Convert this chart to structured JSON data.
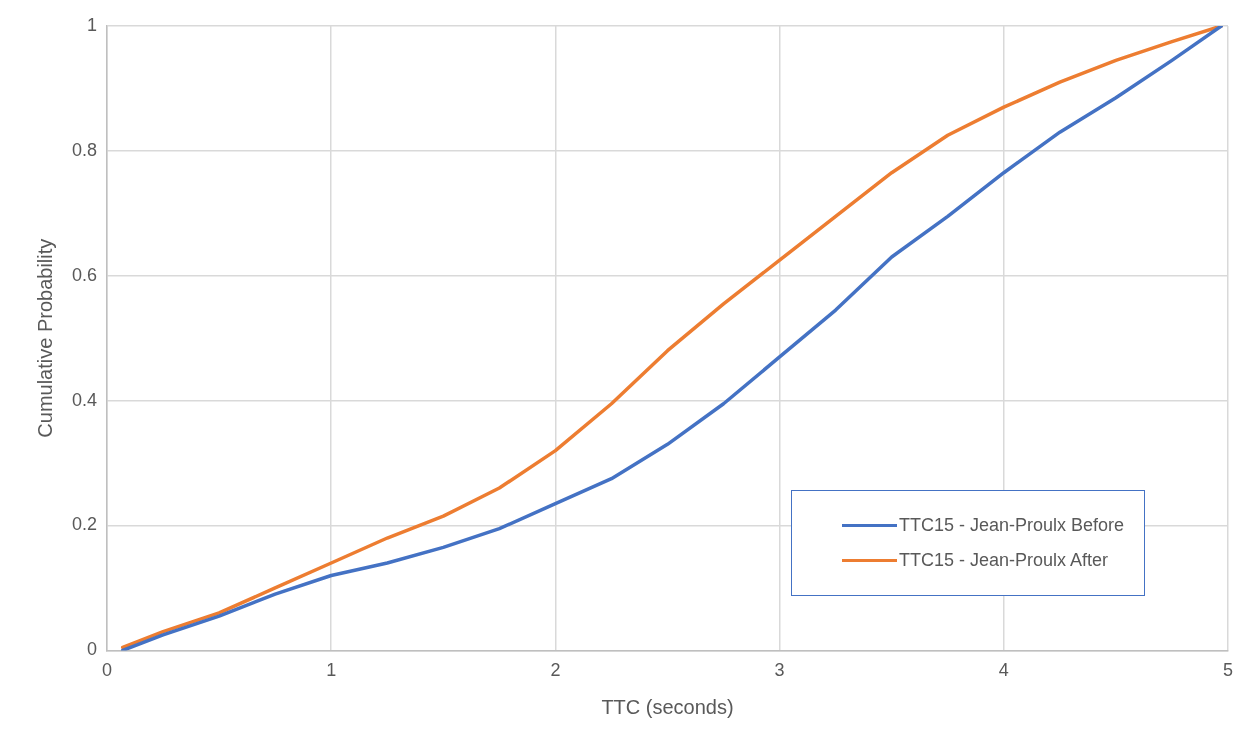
{
  "chart_data": {
    "type": "line",
    "xlabel": "TTC (seconds)",
    "ylabel": "Cumulative Probability",
    "x": [
      0.07,
      0.25,
      0.5,
      0.75,
      1,
      1.25,
      1.5,
      1.75,
      2,
      2.25,
      2.5,
      2.75,
      3,
      3.25,
      3.5,
      3.75,
      4,
      4.25,
      4.5,
      4.75,
      4.97
    ],
    "series": [
      {
        "name": "TTC15 - Jean-Proulx Before",
        "color": "#4472c4",
        "values": [
          0,
          0.025,
          0.055,
          0.09,
          0.12,
          0.14,
          0.165,
          0.195,
          0.235,
          0.275,
          0.33,
          0.395,
          0.47,
          0.545,
          0.63,
          0.695,
          0.765,
          0.83,
          0.885,
          0.945,
          1
        ]
      },
      {
        "name": "TTC15 - Jean-Proulx After",
        "color": "#ed7d31",
        "values": [
          0.005,
          0.03,
          0.06,
          0.1,
          0.14,
          0.18,
          0.215,
          0.26,
          0.32,
          0.395,
          0.48,
          0.555,
          0.625,
          0.695,
          0.765,
          0.825,
          0.87,
          0.91,
          0.945,
          0.975,
          1
        ]
      }
    ],
    "xlim": [
      0,
      5
    ],
    "xticks": [
      0,
      1,
      2,
      3,
      4,
      5
    ],
    "ylim": [
      0,
      1
    ],
    "yticks": [
      0,
      0.2,
      0.4,
      0.6,
      0.8,
      1
    ],
    "grid": true,
    "legend": "bottom right",
    "marker": "none",
    "line_style": "solid"
  }
}
